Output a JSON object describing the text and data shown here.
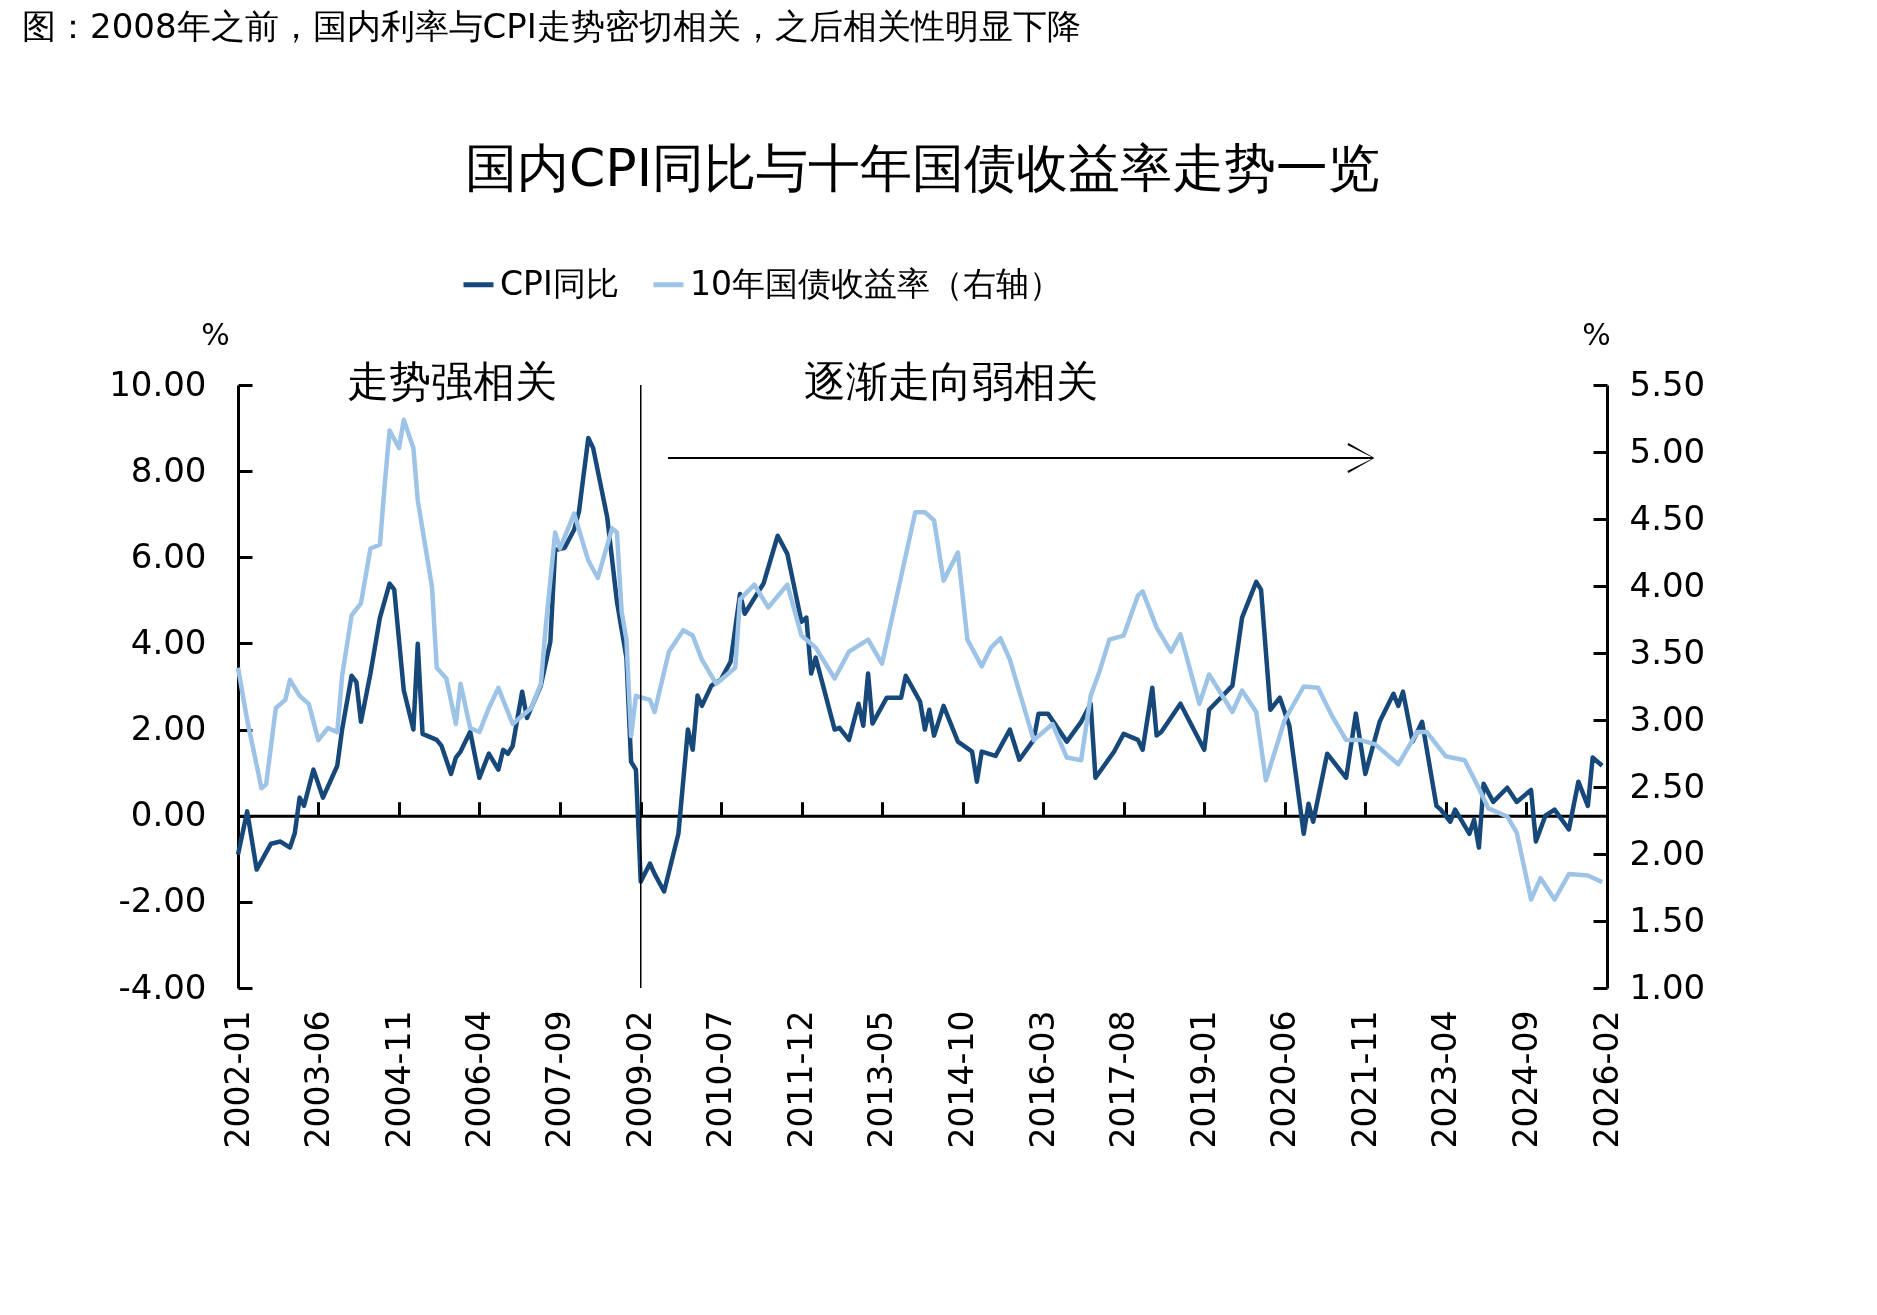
{
  "chart_data": {
    "type": "line",
    "title": "国内CPI同比与十年国债收益率走势一览",
    "annotations": [
      "图：2008年之前，国内利率与CPI走势密切相关，之后相关性明显下降",
      "走势强相关",
      "逐渐走向弱相关"
    ],
    "ylabel": "%",
    "y2label": "%",
    "xlim": [
      "2002-01",
      "2026-02"
    ],
    "xticks": [
      "2002-01",
      "2003-06",
      "2004-11",
      "2006-04",
      "2007-09",
      "2009-02",
      "2010-07",
      "2011-12",
      "2013-05",
      "2014-10",
      "2016-03",
      "2017-08",
      "2019-01",
      "2020-06",
      "2021-11",
      "2023-04",
      "2024-09",
      "2026-02"
    ],
    "ylim": [
      -4,
      10
    ],
    "yticks": [
      {
        "value": -4,
        "label": "-4.00"
      },
      {
        "value": -2,
        "label": "-2.00"
      },
      {
        "value": 0,
        "label": "0.00"
      },
      {
        "value": 2,
        "label": "2.00"
      },
      {
        "value": 4,
        "label": "4.00"
      },
      {
        "value": 6,
        "label": "6.00"
      },
      {
        "value": 8,
        "label": "8.00"
      },
      {
        "value": 10,
        "label": "10.00"
      }
    ],
    "y2lim": [
      1,
      5.5
    ],
    "y2ticks": [
      {
        "value": 1,
        "label": "1.00"
      },
      {
        "value": 1.5,
        "label": "1.50"
      },
      {
        "value": 2,
        "label": "2.00"
      },
      {
        "value": 2.5,
        "label": "2.50"
      },
      {
        "value": 3,
        "label": "3.00"
      },
      {
        "value": 3.5,
        "label": "3.50"
      },
      {
        "value": 4,
        "label": "4.00"
      },
      {
        "value": 4.5,
        "label": "4.50"
      },
      {
        "value": 5,
        "label": "5.00"
      },
      {
        "value": 5.5,
        "label": "5.50"
      }
    ],
    "legend": "top",
    "ref_lines": [
      {
        "axis": "x",
        "value": "2009-02",
        "color": "#000000"
      }
    ],
    "series": [
      {
        "name": "CPI同比",
        "color": "#17487a",
        "x": [
          "2002-01",
          "2002-03",
          "2002-05",
          "2002-08",
          "2002-10",
          "2002-12",
          "2003-01",
          "2003-02",
          "2003-03",
          "2003-05",
          "2003-07",
          "2003-10",
          "2003-11",
          "2004-01",
          "2004-02",
          "2004-03",
          "2004-05",
          "2004-07",
          "2004-09",
          "2004-10",
          "2004-12",
          "2005-02",
          "2005-03",
          "2005-04",
          "2005-07",
          "2005-08",
          "2005-10",
          "2005-11",
          "2005-12",
          "2006-02",
          "2006-04",
          "2006-06",
          "2006-08",
          "2006-09",
          "2006-10",
          "2006-11",
          "2007-01",
          "2007-02",
          "2007-05",
          "2007-07",
          "2007-08",
          "2007-10",
          "2007-12",
          "2008-01",
          "2008-03",
          "2008-04",
          "2008-07",
          "2008-09",
          "2008-11",
          "2008-12",
          "2009-01",
          "2009-02",
          "2009-04",
          "2009-05",
          "2009-07",
          "2009-10",
          "2009-12",
          "2010-01",
          "2010-02",
          "2010-03",
          "2010-05",
          "2010-07",
          "2010-09",
          "2010-11",
          "2010-12",
          "2011-04",
          "2011-07",
          "2011-09",
          "2011-12",
          "2012-01",
          "2012-02",
          "2012-03",
          "2012-07",
          "2012-08",
          "2012-10",
          "2012-12",
          "2013-01",
          "2013-02",
          "2013-03",
          "2013-06",
          "2013-09",
          "2013-10",
          "2014-01",
          "2014-02",
          "2014-03",
          "2014-04",
          "2014-06",
          "2014-09",
          "2014-12",
          "2015-01",
          "2015-02",
          "2015-05",
          "2015-08",
          "2015-10",
          "2016-01",
          "2016-02",
          "2016-04",
          "2016-08",
          "2016-11",
          "2017-01",
          "2017-02",
          "2017-06",
          "2017-08",
          "2017-11",
          "2017-12",
          "2018-02",
          "2018-03",
          "2018-04",
          "2018-08",
          "2019-01",
          "2019-02",
          "2019-05",
          "2019-07",
          "2019-09",
          "2019-12",
          "2020-01",
          "2020-03",
          "2020-05",
          "2020-07",
          "2020-10",
          "2020-11",
          "2020-12",
          "2021-03",
          "2021-07",
          "2021-09",
          "2021-11",
          "2022-02",
          "2022-05",
          "2022-06",
          "2022-07",
          "2022-09",
          "2022-11",
          "2023-02",
          "2023-03",
          "2023-05",
          "2023-06",
          "2023-09",
          "2023-10",
          "2023-11",
          "2023-12",
          "2024-02",
          "2024-05",
          "2024-07",
          "2024-10",
          "2024-11",
          "2025-01",
          "2025-03",
          "2025-06",
          "2025-08",
          "2025-10",
          "2025-11",
          "2026-01"
        ],
        "values": [
          -0.9,
          0.1,
          -1.25,
          -0.65,
          -0.6,
          -0.74,
          -0.4,
          0.42,
          0.23,
          1.07,
          0.42,
          1.16,
          2.0,
          3.25,
          3.1,
          2.18,
          3.3,
          4.6,
          5.39,
          5.25,
          2.92,
          2.0,
          3.99,
          1.9,
          1.76,
          1.62,
          0.97,
          1.35,
          1.49,
          1.95,
          0.88,
          1.44,
          1.07,
          1.53,
          1.44,
          1.62,
          2.88,
          2.27,
          3.02,
          4.04,
          6.17,
          6.22,
          6.64,
          7.06,
          8.77,
          8.54,
          6.92,
          4.97,
          3.67,
          1.25,
          1.07,
          -1.53,
          -1.11,
          -1.35,
          -1.76,
          -0.42,
          2.0,
          1.53,
          2.79,
          2.55,
          3.02,
          3.16,
          3.57,
          5.15,
          4.69,
          5.39,
          6.5,
          6.08,
          4.5,
          4.6,
          3.3,
          3.67,
          2.0,
          2.04,
          1.76,
          2.6,
          2.09,
          3.3,
          2.14,
          2.74,
          2.74,
          3.25,
          2.65,
          2.0,
          2.46,
          1.86,
          2.55,
          1.72,
          1.49,
          0.79,
          1.49,
          1.39,
          2.0,
          1.3,
          1.76,
          2.37,
          2.37,
          1.72,
          2.18,
          2.6,
          0.88,
          1.49,
          1.9,
          1.76,
          1.53,
          2.97,
          1.86,
          1.95,
          2.6,
          1.53,
          2.46,
          2.79,
          3.02,
          4.6,
          5.43,
          5.25,
          2.46,
          2.74,
          2.09,
          -0.42,
          0.28,
          -0.14,
          1.44,
          0.88,
          2.37,
          0.97,
          2.18,
          2.83,
          2.55,
          2.88,
          1.72,
          2.18,
          0.23,
          0.14,
          -0.14,
          0.14,
          -0.42,
          -0.09,
          -0.74,
          0.74,
          0.32,
          0.65,
          0.32,
          0.6,
          -0.6,
          0.0,
          0.14,
          -0.32,
          0.79,
          0.23,
          1.35,
          1.16
        ]
      },
      {
        "name": "10年国债收益率（右轴）",
        "color": "#9dc3e6",
        "axis": "y2",
        "x": [
          "2002-01",
          "2002-03",
          "2002-06",
          "2002-07",
          "2002-09",
          "2002-11",
          "2002-12",
          "2003-02",
          "2003-04",
          "2003-06",
          "2003-08",
          "2003-10",
          "2003-11",
          "2004-01",
          "2004-03",
          "2004-05",
          "2004-07",
          "2004-08",
          "2004-09",
          "2004-11",
          "2004-12",
          "2005-02",
          "2005-03",
          "2005-06",
          "2005-07",
          "2005-09",
          "2005-11",
          "2005-12",
          "2006-02",
          "2006-04",
          "2006-06",
          "2006-08",
          "2006-11",
          "2007-03",
          "2007-05",
          "2007-06",
          "2007-08",
          "2007-09",
          "2007-12",
          "2008-03",
          "2008-05",
          "2008-08",
          "2008-09",
          "2008-10",
          "2008-11",
          "2008-12",
          "2009-01",
          "2009-04",
          "2009-05",
          "2009-08",
          "2009-11",
          "2010-01",
          "2010-03",
          "2010-06",
          "2010-10",
          "2010-11",
          "2011-02",
          "2011-05",
          "2011-09",
          "2011-12",
          "2012-03",
          "2012-07",
          "2012-10",
          "2013-02",
          "2013-05",
          "2013-09",
          "2013-12",
          "2014-02",
          "2014-04",
          "2014-06",
          "2014-09",
          "2014-11",
          "2015-02",
          "2015-04",
          "2015-06",
          "2015-08",
          "2015-11",
          "2016-01",
          "2016-05",
          "2016-08",
          "2016-11",
          "2017-01",
          "2017-03",
          "2017-05",
          "2017-08",
          "2017-11",
          "2017-12",
          "2018-03",
          "2018-06",
          "2018-08",
          "2018-12",
          "2019-02",
          "2019-07",
          "2019-09",
          "2019-12",
          "2020-02",
          "2020-06",
          "2020-10",
          "2021-01",
          "2021-04",
          "2021-07",
          "2021-10",
          "2022-01",
          "2022-06",
          "2022-10",
          "2022-12",
          "2023-04",
          "2023-08",
          "2023-11",
          "2024-01",
          "2024-05",
          "2024-07",
          "2024-10",
          "2024-12",
          "2025-03",
          "2025-06",
          "2025-10",
          "2026-01"
        ],
        "values": [
          3.39,
          3.0,
          2.49,
          2.52,
          3.09,
          3.15,
          3.3,
          3.18,
          3.12,
          2.85,
          2.94,
          2.91,
          3.33,
          3.78,
          3.87,
          4.28,
          4.31,
          4.76,
          5.16,
          5.03,
          5.24,
          5.03,
          4.64,
          3.99,
          3.39,
          3.31,
          2.97,
          3.27,
          2.94,
          2.91,
          3.09,
          3.24,
          2.97,
          3.09,
          3.27,
          3.69,
          4.4,
          4.28,
          4.54,
          4.19,
          4.06,
          4.43,
          4.4,
          3.81,
          3.6,
          2.88,
          3.18,
          3.15,
          3.06,
          3.51,
          3.67,
          3.63,
          3.45,
          3.27,
          3.39,
          3.9,
          4.01,
          3.84,
          4.01,
          3.63,
          3.54,
          3.31,
          3.51,
          3.6,
          3.42,
          4.07,
          4.55,
          4.55,
          4.49,
          4.04,
          4.25,
          3.6,
          3.4,
          3.54,
          3.61,
          3.45,
          3.09,
          2.85,
          2.97,
          2.72,
          2.7,
          3.18,
          3.37,
          3.6,
          3.63,
          3.93,
          3.96,
          3.69,
          3.51,
          3.64,
          3.12,
          3.34,
          3.06,
          3.22,
          3.06,
          2.55,
          3.0,
          3.25,
          3.24,
          3.03,
          2.85,
          2.85,
          2.82,
          2.67,
          2.91,
          2.91,
          2.73,
          2.7,
          2.49,
          2.34,
          2.28,
          2.16,
          1.66,
          1.82,
          1.66,
          1.85,
          1.84,
          1.79
        ]
      }
    ]
  }
}
